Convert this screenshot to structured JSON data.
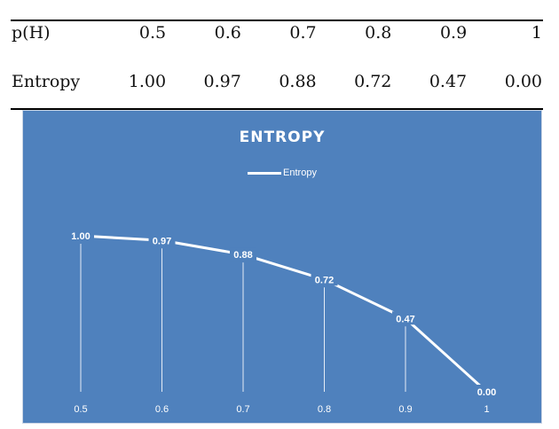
{
  "table": {
    "row1_label": "p(H)",
    "row1_values": [
      "0.5",
      "0.6",
      "0.7",
      "0.8",
      "0.9",
      "1"
    ],
    "row2_label": "Entropy",
    "row2_values": [
      "1.00",
      "0.97",
      "0.88",
      "0.72",
      "0.47",
      "0.00"
    ]
  },
  "chart_data": {
    "type": "line",
    "title": "ENTROPY",
    "legend": "top",
    "x": [
      "0.5",
      "0.6",
      "0.7",
      "0.8",
      "0.9",
      "1"
    ],
    "series": [
      {
        "name": "Entropy",
        "values": [
          1.0,
          0.97,
          0.88,
          0.72,
          0.47,
          0.0
        ]
      }
    ],
    "data_labels": [
      "1.00",
      "0.97",
      "0.88",
      "0.72",
      "0.47",
      "0.00"
    ],
    "ylim": [
      0,
      1
    ],
    "grid": false,
    "drop_lines": true
  },
  "colors": {
    "background": "#4f81bd",
    "line": "#ffffff"
  }
}
